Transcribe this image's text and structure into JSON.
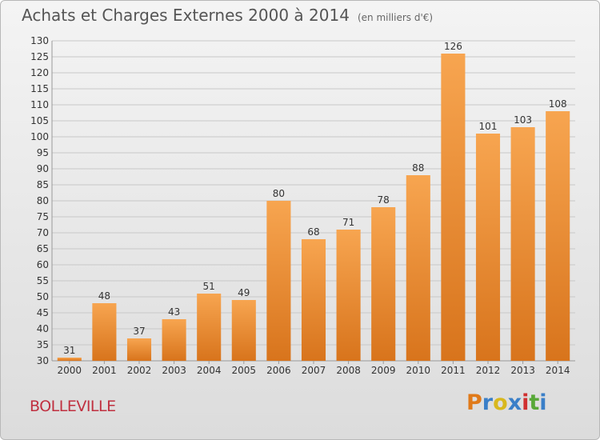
{
  "header": {
    "title": "Achats et Charges Externes 2000 à 2014",
    "subtitle": "(en milliers d'€)"
  },
  "footer": {
    "place": "BOLLEVILLE",
    "logo_text": "Proxiti",
    "logo_colors": [
      "#e07a1a",
      "#3a7fc8",
      "#d8b81e",
      "#3a7fc8",
      "#d03030",
      "#58a838",
      "#3a7fc8"
    ]
  },
  "colors": {
    "bar_light": "#f7a550",
    "bar_dark": "#d8741c",
    "grid": "#c8c8c8"
  },
  "chart_data": {
    "type": "bar",
    "title": "Achats et Charges Externes 2000 à 2014",
    "subtitle": "(en milliers d'€)",
    "categories": [
      "2000",
      "2001",
      "2002",
      "2003",
      "2004",
      "2005",
      "2006",
      "2007",
      "2008",
      "2009",
      "2010",
      "2011",
      "2012",
      "2013",
      "2014"
    ],
    "values": [
      31,
      48,
      37,
      43,
      51,
      49,
      80,
      68,
      71,
      78,
      88,
      126,
      101,
      103,
      108
    ],
    "ylim": [
      30,
      130
    ],
    "yticks": [
      30,
      35,
      40,
      45,
      50,
      55,
      60,
      65,
      70,
      75,
      80,
      85,
      90,
      95,
      100,
      105,
      110,
      115,
      120,
      125,
      130
    ],
    "grid": true,
    "xlabel": "",
    "ylabel": ""
  }
}
